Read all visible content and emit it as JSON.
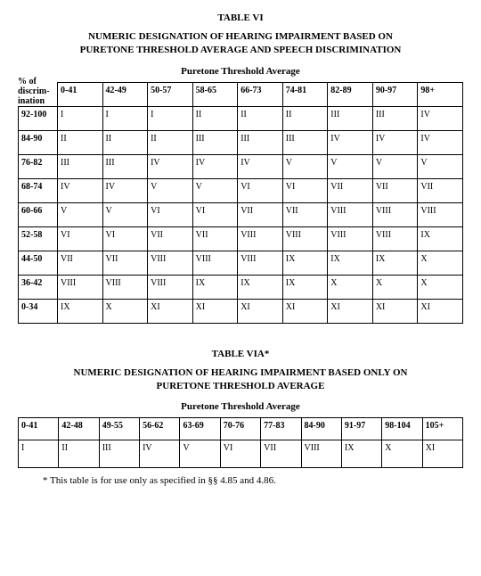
{
  "table1": {
    "number": "TABLE VI",
    "title_line1": "NUMERIC DESIGNATION OF HEARING IMPAIRMENT BASED ON",
    "title_line2": "PURETONE THRESHOLD AVERAGE AND SPEECH DISCRIMINATION",
    "subheading": "Puretone Threshold Average",
    "pct_label_line1": "% of",
    "pct_label_line2": "discrim-",
    "pct_label_line3": "ination",
    "col_headers": [
      "0-41",
      "42-49",
      "50-57",
      "58-65",
      "66-73",
      "74-81",
      "82-89",
      "90-97",
      "98+"
    ],
    "rows": [
      {
        "label": "92-100",
        "cells": [
          "I",
          "I",
          "I",
          "II",
          "II",
          "II",
          "III",
          "III",
          "IV"
        ]
      },
      {
        "label": "84-90",
        "cells": [
          "II",
          "II",
          "II",
          "III",
          "III",
          "III",
          "IV",
          "IV",
          "IV"
        ]
      },
      {
        "label": "76-82",
        "cells": [
          "III",
          "III",
          "IV",
          "IV",
          "IV",
          "V",
          "V",
          "V",
          "V"
        ]
      },
      {
        "label": "68-74",
        "cells": [
          "IV",
          "IV",
          "V",
          "V",
          "VI",
          "VI",
          "VII",
          "VII",
          "VII"
        ]
      },
      {
        "label": "60-66",
        "cells": [
          "V",
          "V",
          "VI",
          "VI",
          "VII",
          "VII",
          "VIII",
          "VIII",
          "VIII"
        ]
      },
      {
        "label": "52-58",
        "cells": [
          "VI",
          "VI",
          "VII",
          "VII",
          "VIII",
          "VIII",
          "VIII",
          "VIII",
          "IX"
        ]
      },
      {
        "label": "44-50",
        "cells": [
          "VII",
          "VII",
          "VIII",
          "VIII",
          "VIII",
          "IX",
          "IX",
          "IX",
          "X"
        ]
      },
      {
        "label": "36-42",
        "cells": [
          "VIII",
          "VIII",
          "VIII",
          "IX",
          "IX",
          "IX",
          "X",
          "X",
          "X"
        ]
      },
      {
        "label": "0-34",
        "cells": [
          "IX",
          "X",
          "XI",
          "XI",
          "XI",
          "XI",
          "XI",
          "XI",
          "XI"
        ]
      }
    ]
  },
  "table2": {
    "number": "TABLE VIA*",
    "title_line1": "NUMERIC DESIGNATION OF HEARING IMPAIRMENT BASED ONLY ON",
    "title_line2": "PURETONE THRESHOLD AVERAGE",
    "subheading": "Puretone Threshold Average",
    "col_headers": [
      "0-41",
      "42-48",
      "49-55",
      "56-62",
      "63-69",
      "70-76",
      "77-83",
      "84-90",
      "91-97",
      "98-104",
      "105+"
    ],
    "row": [
      "I",
      "II",
      "III",
      "IV",
      "V",
      "VI",
      "VII",
      "VIII",
      "IX",
      "X",
      "XI"
    ],
    "footnote": "* This table is for use only as specified in §§ 4.85 and 4.86."
  }
}
